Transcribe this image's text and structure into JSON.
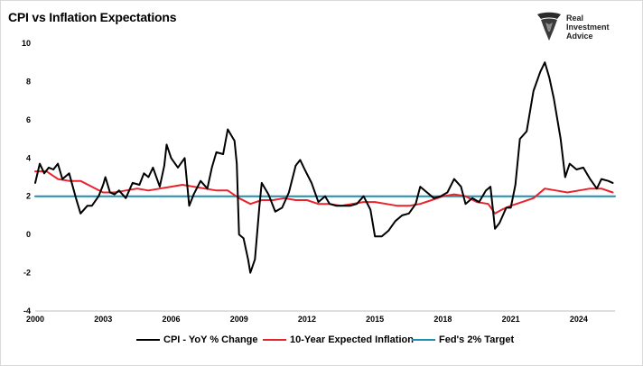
{
  "chart_data": {
    "type": "line",
    "title": "CPI vs Inflation Expectations",
    "xlabel": "",
    "ylabel": "",
    "xlim": [
      2000,
      2025.6
    ],
    "ylim": [
      -4,
      10
    ],
    "x_ticks": [
      "2000",
      "2003",
      "2006",
      "2009",
      "2012",
      "2015",
      "2018",
      "2021",
      "2024"
    ],
    "y_ticks": [
      10,
      8,
      6,
      4,
      2,
      0,
      -2,
      -4
    ],
    "grid": false,
    "legend_position": "bottom",
    "series": [
      {
        "name": "CPI - YoY % Change",
        "color": "#000000",
        "x": [
          2000.0,
          2000.2,
          2000.4,
          2000.6,
          2000.8,
          2001.0,
          2001.2,
          2001.5,
          2001.8,
          2002.0,
          2002.3,
          2002.5,
          2002.8,
          2003.0,
          2003.1,
          2003.3,
          2003.5,
          2003.7,
          2004.0,
          2004.3,
          2004.6,
          2004.8,
          2005.0,
          2005.2,
          2005.5,
          2005.7,
          2005.8,
          2006.0,
          2006.3,
          2006.6,
          2006.8,
          2007.0,
          2007.3,
          2007.6,
          2007.8,
          2008.0,
          2008.3,
          2008.5,
          2008.8,
          2008.9,
          2009.0,
          2009.2,
          2009.4,
          2009.5,
          2009.7,
          2009.9,
          2010.0,
          2010.3,
          2010.6,
          2010.9,
          2011.2,
          2011.5,
          2011.7,
          2011.9,
          2012.2,
          2012.5,
          2012.8,
          2013.0,
          2013.3,
          2013.6,
          2013.9,
          2014.2,
          2014.5,
          2014.8,
          2015.0,
          2015.3,
          2015.6,
          2015.9,
          2016.2,
          2016.5,
          2016.8,
          2017.0,
          2017.3,
          2017.6,
          2017.9,
          2018.2,
          2018.5,
          2018.8,
          2019.0,
          2019.3,
          2019.6,
          2019.9,
          2020.1,
          2020.3,
          2020.5,
          2020.8,
          2021.0,
          2021.2,
          2021.4,
          2021.7,
          2022.0,
          2022.3,
          2022.5,
          2022.7,
          2022.9,
          2023.2,
          2023.4,
          2023.6,
          2023.9,
          2024.2,
          2024.5,
          2024.8,
          2025.0,
          2025.3,
          2025.5
        ],
        "y": [
          2.7,
          3.7,
          3.2,
          3.5,
          3.4,
          3.7,
          2.9,
          3.2,
          1.9,
          1.1,
          1.5,
          1.5,
          2.0,
          2.6,
          3.0,
          2.2,
          2.1,
          2.3,
          1.9,
          2.7,
          2.6,
          3.2,
          3.0,
          3.5,
          2.5,
          3.6,
          4.7,
          4.0,
          3.5,
          4.0,
          1.5,
          2.1,
          2.8,
          2.4,
          3.5,
          4.3,
          4.2,
          5.5,
          4.9,
          3.7,
          0.0,
          -0.2,
          -1.3,
          -2.0,
          -1.3,
          1.5,
          2.7,
          2.1,
          1.2,
          1.4,
          2.2,
          3.6,
          3.9,
          3.4,
          2.7,
          1.7,
          2.0,
          1.6,
          1.5,
          1.5,
          1.5,
          1.6,
          2.0,
          1.3,
          -0.1,
          -0.1,
          0.2,
          0.7,
          1.0,
          1.1,
          1.6,
          2.5,
          2.2,
          1.9,
          2.0,
          2.2,
          2.9,
          2.5,
          1.6,
          1.9,
          1.7,
          2.3,
          2.5,
          0.3,
          0.6,
          1.4,
          1.4,
          2.6,
          5.0,
          5.4,
          7.5,
          8.5,
          9.0,
          8.2,
          7.1,
          5.0,
          3.0,
          3.7,
          3.4,
          3.5,
          2.9,
          2.4,
          2.9,
          2.8,
          2.7
        ]
      },
      {
        "name": "10-Year Expected Inflation",
        "color": "#e8232c",
        "x": [
          2000.0,
          2000.5,
          2001.0,
          2001.5,
          2002.0,
          2002.5,
          2003.0,
          2003.5,
          2004.0,
          2004.5,
          2005.0,
          2005.5,
          2006.0,
          2006.5,
          2007.0,
          2007.5,
          2008.0,
          2008.5,
          2009.0,
          2009.5,
          2010.0,
          2010.5,
          2011.0,
          2011.5,
          2012.0,
          2012.5,
          2013.0,
          2013.5,
          2014.0,
          2014.5,
          2015.0,
          2015.5,
          2016.0,
          2016.5,
          2017.0,
          2017.5,
          2018.0,
          2018.5,
          2019.0,
          2019.5,
          2020.0,
          2020.3,
          2020.6,
          2021.0,
          2021.5,
          2022.0,
          2022.5,
          2023.0,
          2023.5,
          2024.0,
          2024.5,
          2025.0,
          2025.5
        ],
        "y": [
          3.3,
          3.3,
          2.9,
          2.8,
          2.8,
          2.5,
          2.2,
          2.2,
          2.3,
          2.4,
          2.3,
          2.4,
          2.5,
          2.6,
          2.5,
          2.4,
          2.3,
          2.3,
          1.9,
          1.6,
          1.8,
          1.8,
          1.9,
          1.8,
          1.8,
          1.6,
          1.6,
          1.5,
          1.6,
          1.7,
          1.7,
          1.6,
          1.5,
          1.5,
          1.6,
          1.8,
          2.0,
          2.1,
          2.0,
          1.7,
          1.6,
          1.1,
          1.3,
          1.5,
          1.7,
          1.9,
          2.4,
          2.3,
          2.2,
          2.3,
          2.4,
          2.4,
          2.2
        ]
      },
      {
        "name": "Fed's 2% Target",
        "color": "#1f8fb0",
        "x": [
          2000.0,
          2025.6
        ],
        "y": [
          2,
          2
        ]
      }
    ]
  },
  "logo": {
    "line1": "Real",
    "line2": "Investment",
    "line3": "Advice"
  }
}
